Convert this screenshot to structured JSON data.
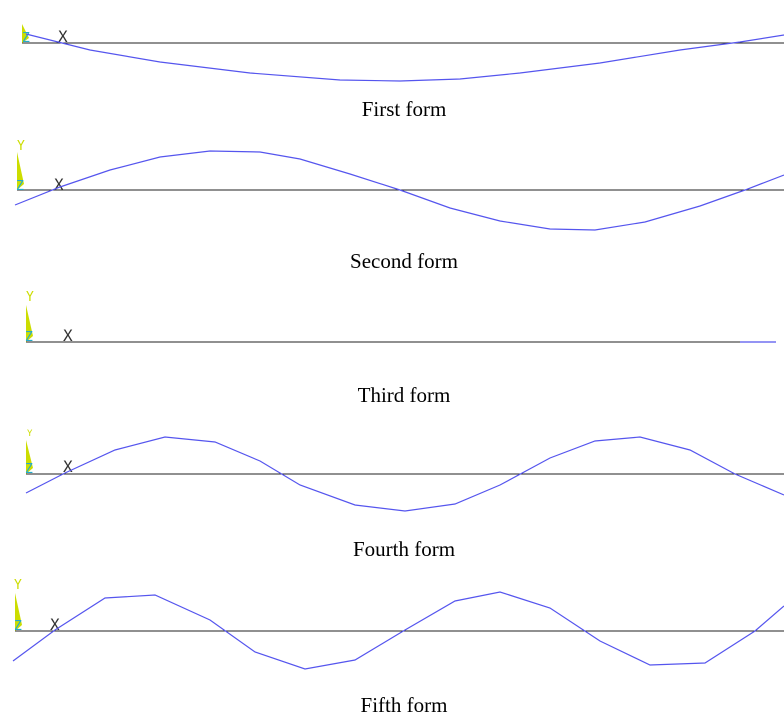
{
  "colors": {
    "mode_line": "#5555ee",
    "baseline": "#222222",
    "triad_y": "#ccdd00",
    "triad_z": "#22aacc",
    "x_label": "#333333"
  },
  "panels": [
    {
      "caption": "First form",
      "triad": {
        "y": "",
        "z": "Z",
        "x": "X"
      }
    },
    {
      "caption": "Second form",
      "triad": {
        "y": "Y",
        "z": "Z",
        "x": "X"
      }
    },
    {
      "caption": "Third form",
      "triad": {
        "y": "Y",
        "z": "Z",
        "x": "X"
      }
    },
    {
      "caption": "Fourth form",
      "triad": {
        "y": "Y",
        "z": "Z",
        "x": "X"
      }
    },
    {
      "caption": "Fifth form",
      "triad": {
        "y": "Y",
        "z": "Z",
        "x": "X"
      }
    }
  ]
}
